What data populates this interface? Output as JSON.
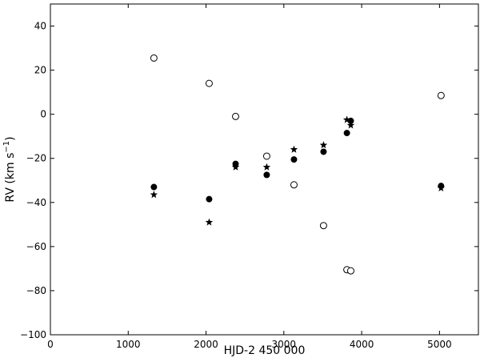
{
  "chart_data": {
    "type": "scatter",
    "xlabel": "HJD-2 450 000",
    "ylabel_main": "RV (km s",
    "ylabel_sup": "−1",
    "ylabel_close": ")",
    "xlim": [
      0,
      5500
    ],
    "ylim": [
      -100,
      50
    ],
    "xticks": [
      0,
      1000,
      2000,
      3000,
      4000,
      5000
    ],
    "yticks": [
      -100,
      -80,
      -60,
      -40,
      -20,
      0,
      20,
      40
    ],
    "xtick_labels": [
      "0",
      "1000",
      "2000",
      "3000",
      "4000",
      "5000"
    ],
    "ytick_labels": [
      "−100",
      "−80",
      "−60",
      "−40",
      "−20",
      "0",
      "20",
      "40"
    ],
    "grid": false,
    "series": [
      {
        "marker": "filled-circle",
        "color": "#000000",
        "points": [
          [
            1330,
            -33
          ],
          [
            2040,
            -38.5
          ],
          [
            2380,
            -22.5
          ],
          [
            2780,
            -27.5
          ],
          [
            3130,
            -20.5
          ],
          [
            3510,
            -17
          ],
          [
            3810,
            -8.5
          ],
          [
            3860,
            -3
          ],
          [
            5020,
            -32.5
          ]
        ]
      },
      {
        "marker": "open-circle",
        "color": "#000000",
        "points": [
          [
            1330,
            25.5
          ],
          [
            2040,
            14
          ],
          [
            2380,
            -1
          ],
          [
            2780,
            -19
          ],
          [
            3130,
            -32
          ],
          [
            3510,
            -50.5
          ],
          [
            3810,
            -70.5
          ],
          [
            3860,
            -71
          ],
          [
            5020,
            8.5
          ]
        ]
      },
      {
        "marker": "star",
        "color": "#000000",
        "points": [
          [
            1330,
            -36.5
          ],
          [
            2040,
            -49
          ],
          [
            2380,
            -24
          ],
          [
            2780,
            -24
          ],
          [
            3130,
            -16
          ],
          [
            3510,
            -14
          ],
          [
            3810,
            -2.5
          ],
          [
            3860,
            -5
          ],
          [
            5020,
            -33.5
          ]
        ]
      }
    ]
  }
}
